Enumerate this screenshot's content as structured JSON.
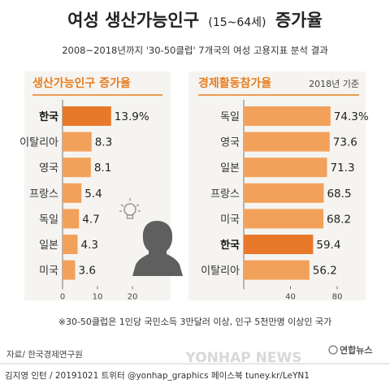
{
  "header": {
    "title_main": "여성 생산가능인구",
    "title_sub": "(15~64세)",
    "title_tail": "증가율",
    "subtitle": "2008~2018년까지 '30-50클럽' 7개국의 여성 고용지표 분석 결과"
  },
  "footnote": "※30-50클럽은 1인당 국민소득 3만달러 이상, 인구 5천만명 이상인 국가",
  "source": "자료/ 한국경제연구원",
  "credits": "김지영 인턴 / 20191021 트위터 @yonhap_graphics 페이스북 tuney.kr/LeYN1",
  "watermark": "YONHAP NEWS",
  "logo_text": "연합뉴스",
  "colors": {
    "accent": "#e67e22",
    "highlight": "#e8782a",
    "bar": "#f2a15a",
    "panel_bg": "#f6f4f1",
    "dark": "#3a3a3a"
  },
  "chart_data": [
    {
      "type": "bar",
      "orientation": "horizontal",
      "title": "생산가능인구 증가율",
      "categories": [
        "한국",
        "이탈리아",
        "영국",
        "프랑스",
        "독일",
        "일본",
        "미국"
      ],
      "values": [
        13.9,
        8.3,
        8.1,
        5.4,
        4.7,
        4.3,
        3.6
      ],
      "value_labels": [
        "13.9%",
        "8.3",
        "8.1",
        "5.4",
        "4.7",
        "4.3",
        "3.6"
      ],
      "highlight": "한국",
      "xlim": [
        0,
        20
      ],
      "xticks": [
        0,
        10,
        20
      ]
    },
    {
      "type": "bar",
      "orientation": "horizontal",
      "title": "경제활동참가율",
      "note": "2018년 기준",
      "categories": [
        "독일",
        "영국",
        "일본",
        "프랑스",
        "미국",
        "한국",
        "이탈리아"
      ],
      "values": [
        74.3,
        73.6,
        71.3,
        68.5,
        68.2,
        59.4,
        56.2
      ],
      "value_labels": [
        "74.3%",
        "73.6",
        "71.3",
        "68.5",
        "68.2",
        "59.4",
        "56.2"
      ],
      "highlight": "한국",
      "xlim": [
        0,
        80
      ],
      "xticks": [
        40,
        80
      ]
    }
  ]
}
